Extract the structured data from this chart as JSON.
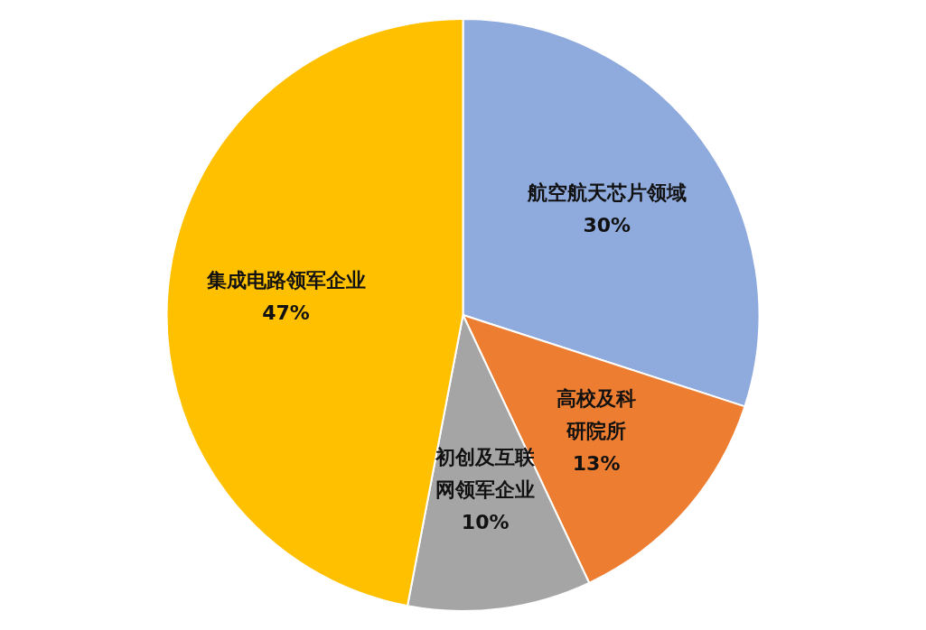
{
  "chart_data": {
    "type": "pie",
    "categories": [
      "航空航天芯片领域",
      "高校及科研院所",
      "初创及互联网领军企业",
      "集成电路领军企业"
    ],
    "values": [
      30,
      13,
      10,
      47
    ],
    "colors": [
      "#8faadc",
      "#ed7d31",
      "#a5a5a5",
      "#ffc000"
    ],
    "value_labels": [
      "30%",
      "13%",
      "10%",
      "47%"
    ],
    "legend": false
  }
}
